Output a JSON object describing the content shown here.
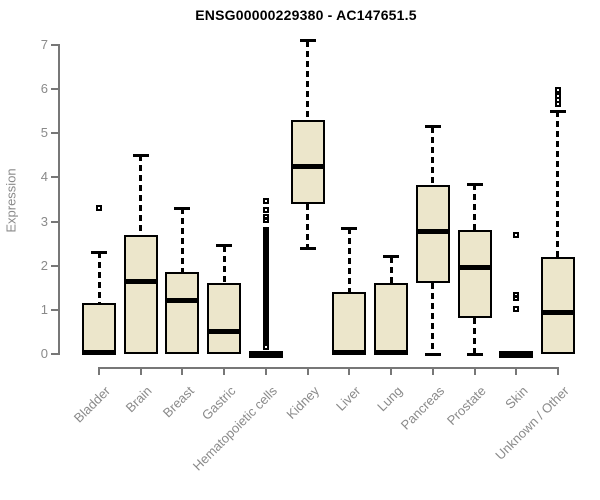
{
  "header": {
    "title": "ENSG00000229380 - AC147651.5"
  },
  "chart_data": {
    "type": "boxplot",
    "title": "ENSG00000229380 - AC147651.5",
    "xlabel": "",
    "ylabel": "Expression",
    "ylim": [
      0,
      7
    ],
    "yticks": [
      0,
      1,
      2,
      3,
      4,
      5,
      6,
      7
    ],
    "grid": false,
    "legend": "none",
    "categories": [
      "Bladder",
      "Brain",
      "Breast",
      "Gastric",
      "Hematopoietic cells",
      "Kidney",
      "Liver",
      "Lung",
      "Pancreas",
      "Prostate",
      "Skin",
      "Unknown / Other"
    ],
    "boxes": [
      {
        "category": "Bladder",
        "whisker_low": 0,
        "q1": 0,
        "median": 0.04,
        "q3": 1.15,
        "whisker_high": 2.3,
        "outliers": [
          3.3
        ]
      },
      {
        "category": "Brain",
        "whisker_low": 0,
        "q1": 0,
        "median": 1.65,
        "q3": 2.7,
        "whisker_high": 4.5,
        "outliers": []
      },
      {
        "category": "Breast",
        "whisker_low": 0,
        "q1": 0,
        "median": 1.22,
        "q3": 1.85,
        "whisker_high": 3.3,
        "outliers": []
      },
      {
        "category": "Gastric",
        "whisker_low": 0,
        "q1": 0,
        "median": 0.5,
        "q3": 1.6,
        "whisker_high": 2.45,
        "outliers": []
      },
      {
        "category": "Hematopoietic cells",
        "whisker_low": 0,
        "q1": 0,
        "median": 0,
        "q3": 0,
        "whisker_high": 0,
        "outliers": [
          3.47,
          3.26,
          3.1,
          3.03,
          0.16
        ],
        "outlier_column": [
          0.25,
          2.81
        ]
      },
      {
        "category": "Kidney",
        "whisker_low": 2.4,
        "q1": 3.4,
        "median": 4.25,
        "q3": 5.3,
        "whisker_high": 7.1,
        "outliers": []
      },
      {
        "category": "Liver",
        "whisker_low": 0,
        "q1": 0,
        "median": 0.04,
        "q3": 1.4,
        "whisker_high": 2.85,
        "outliers": []
      },
      {
        "category": "Lung",
        "whisker_low": 0,
        "q1": 0,
        "median": 0.04,
        "q3": 1.6,
        "whisker_high": 2.2,
        "outliers": []
      },
      {
        "category": "Pancreas",
        "whisker_low": 0,
        "q1": 1.6,
        "median": 2.78,
        "q3": 3.82,
        "whisker_high": 5.15,
        "outliers": []
      },
      {
        "category": "Prostate",
        "whisker_low": 0,
        "q1": 0.82,
        "median": 1.95,
        "q3": 2.82,
        "whisker_high": 3.85,
        "outliers": []
      },
      {
        "category": "Skin",
        "whisker_low": 0,
        "q1": 0,
        "median": 0,
        "q3": 0,
        "whisker_high": 0,
        "outliers": [
          2.7,
          1.34,
          1.28,
          1.02
        ]
      },
      {
        "category": "Unknown / Other",
        "whisker_low": 0,
        "q1": 0,
        "median": 0.95,
        "q3": 2.2,
        "whisker_high": 5.5,
        "outliers": [
          5.98,
          5.85,
          5.75,
          5.66
        ]
      }
    ],
    "style": {
      "box_fill": "#ece6cb",
      "box_border": "#000000",
      "median_color": "#000000",
      "axis_color": "#777777",
      "label_color": "#8a8a8a",
      "title_color": "#000000",
      "background": "#ffffff"
    }
  }
}
